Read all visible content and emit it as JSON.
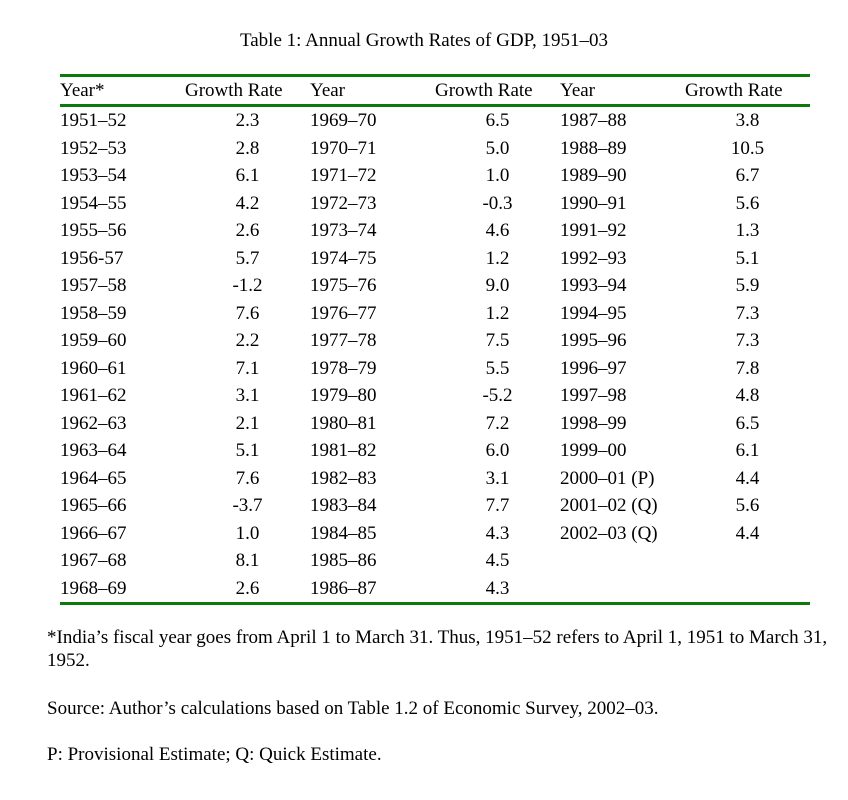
{
  "document": {
    "title": "Table 1: Annual Growth Rates of GDP, 1951–03",
    "headers": [
      "Year*",
      "Growth Rate",
      "Year",
      "Growth Rate",
      "Year",
      "Growth Rate"
    ],
    "rows": [
      [
        "1951–52",
        "2.3",
        "1969–70",
        "6.5",
        "1987–88",
        "3.8"
      ],
      [
        "1952–53",
        "2.8",
        "1970–71",
        "5.0",
        "1988–89",
        "10.5"
      ],
      [
        "1953–54",
        "6.1",
        "1971–72",
        "1.0",
        "1989–90",
        "6.7"
      ],
      [
        "1954–55",
        "4.2",
        "1972–73",
        "-0.3",
        "1990–91",
        "5.6"
      ],
      [
        "1955–56",
        "2.6",
        "1973–74",
        "4.6",
        "1991–92",
        "1.3"
      ],
      [
        "1956-57",
        "5.7",
        "1974–75",
        "1.2",
        "1992–93",
        "5.1"
      ],
      [
        "1957–58",
        "-1.2",
        "1975–76",
        "9.0",
        "1993–94",
        "5.9"
      ],
      [
        "1958–59",
        "7.6",
        "1976–77",
        "1.2",
        "1994–95",
        "7.3"
      ],
      [
        "1959–60",
        "2.2",
        "1977–78",
        "7.5",
        "1995–96",
        "7.3"
      ],
      [
        "1960–61",
        "7.1",
        "1978–79",
        "5.5",
        "1996–97",
        "7.8"
      ],
      [
        "1961–62",
        "3.1",
        "1979–80",
        "-5.2",
        "1997–98",
        "4.8"
      ],
      [
        "1962–63",
        "2.1",
        "1980–81",
        "7.2",
        "1998–99",
        "6.5"
      ],
      [
        "1963–64",
        "5.1",
        "1981–82",
        "6.0",
        "1999–00",
        "6.1"
      ],
      [
        "1964–65",
        "7.6",
        "1982–83",
        "3.1",
        "2000–01 (P)",
        "4.4"
      ],
      [
        "1965–66",
        "-3.7",
        "1983–84",
        "7.7",
        "2001–02 (Q)",
        "5.6"
      ],
      [
        "1966–67",
        "1.0",
        "1984–85",
        "4.3",
        "2002–03 (Q)",
        "4.4"
      ],
      [
        "1967–68",
        "8.1",
        "1985–86",
        "4.5",
        "",
        ""
      ],
      [
        "1968–69",
        "2.6",
        "1986–87",
        "4.3",
        "",
        ""
      ]
    ],
    "notes": {
      "fiscal_year": "*India’s fiscal year goes from April 1 to March 31.  Thus, 1951–52 refers to April 1, 1951 to March 31, 1952.",
      "source": "Source: Author’s calculations based on Table 1.2 of Economic Survey, 2002–03.",
      "legend": "P: Provisional Estimate; Q: Quick Estimate."
    },
    "colors": {
      "rule": "#0a7a0a",
      "text": "#000000",
      "background": "#ffffff"
    }
  }
}
